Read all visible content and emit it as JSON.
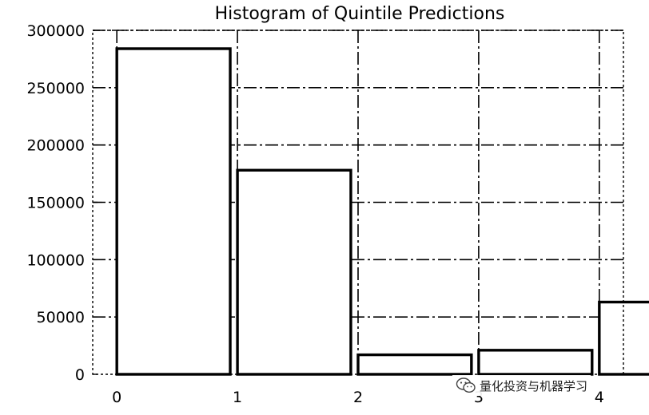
{
  "chart_data": {
    "type": "bar",
    "title": "Histogram of Quintile Predictions",
    "categories": [
      "0",
      "1",
      "2",
      "3",
      "4"
    ],
    "x": [
      0,
      1,
      2,
      3,
      4
    ],
    "values": [
      284000,
      178000,
      17000,
      21000,
      63000
    ],
    "xlabel": "",
    "ylabel": "",
    "xlim": [
      -0.2,
      4.2
    ],
    "ylim": [
      0,
      300000
    ],
    "xticks": [
      0,
      1,
      2,
      3,
      4
    ],
    "yticks": [
      0,
      50000,
      100000,
      150000,
      200000,
      250000,
      300000
    ],
    "ytick_labels": [
      "0",
      "50000",
      "100000",
      "150000",
      "200000",
      "250000",
      "300000"
    ],
    "grid": true,
    "legend": "none"
  },
  "watermark": {
    "icon": "wechat-icon",
    "text": "量化投资与机器学习"
  }
}
